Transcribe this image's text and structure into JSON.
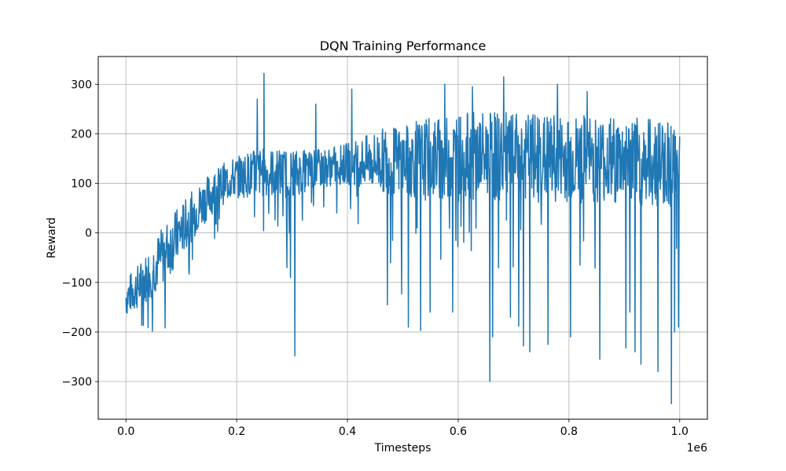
{
  "chart_data": {
    "type": "line",
    "title": "DQN Training Performance",
    "xlabel": "Timesteps",
    "ylabel": "Reward",
    "x_offset_label": "1e6",
    "xlim": [
      -0.05,
      1.05
    ],
    "ylim": [
      -376,
      356
    ],
    "xticks": [
      0.0,
      0.2,
      0.4,
      0.6,
      0.8,
      1.0
    ],
    "xtick_labels": [
      "0.0",
      "0.2",
      "0.4",
      "0.6",
      "0.8",
      "1.0"
    ],
    "yticks": [
      -300,
      -200,
      -100,
      0,
      100,
      200,
      300
    ],
    "ytick_labels": [
      "−300",
      "−200",
      "−100",
      "0",
      "100",
      "200",
      "300"
    ],
    "grid": true,
    "series": [
      {
        "color": "#1f77b4",
        "x": [
          0.0,
          0.01,
          0.02,
          0.03,
          0.04,
          0.05,
          0.06,
          0.07,
          0.08,
          0.09,
          0.1,
          0.11,
          0.12,
          0.13,
          0.14,
          0.15,
          0.16,
          0.17,
          0.18,
          0.19,
          0.2,
          0.21,
          0.22,
          0.23,
          0.24,
          0.25,
          0.26,
          0.27,
          0.28,
          0.29,
          0.3,
          0.31,
          0.32,
          0.33,
          0.34,
          0.35,
          0.36,
          0.37,
          0.38,
          0.39,
          0.4,
          0.41,
          0.42,
          0.43,
          0.44,
          0.45,
          0.46,
          0.47,
          0.48,
          0.49,
          0.5,
          0.51,
          0.52,
          0.53,
          0.54,
          0.55,
          0.56,
          0.57,
          0.58,
          0.59,
          0.6,
          0.61,
          0.62,
          0.63,
          0.64,
          0.65,
          0.66,
          0.67,
          0.68,
          0.69,
          0.7,
          0.71,
          0.72,
          0.73,
          0.74,
          0.75,
          0.76,
          0.77,
          0.78,
          0.79,
          0.8,
          0.81,
          0.82,
          0.83,
          0.84,
          0.85,
          0.86,
          0.87,
          0.88,
          0.89,
          0.9,
          0.91,
          0.92,
          0.93,
          0.94,
          0.95,
          0.96,
          0.97,
          0.98,
          0.99,
          1.0
        ],
        "ymean": [
          -130,
          -120,
          -110,
          -100,
          -85,
          -70,
          -55,
          -40,
          -25,
          -10,
          5,
          20,
          35,
          50,
          62,
          75,
          85,
          95,
          102,
          108,
          112,
          115,
          118,
          120,
          122,
          122,
          122,
          121,
          120,
          120,
          121,
          122,
          124,
          126,
          128,
          130,
          132,
          134,
          136,
          138,
          140,
          141,
          142,
          143,
          144,
          145,
          146,
          146,
          145,
          144,
          144,
          145,
          146,
          147,
          148,
          149,
          150,
          150,
          151,
          152,
          153,
          154,
          155,
          155,
          155,
          155,
          154,
          154,
          154,
          153,
          153,
          152,
          152,
          152,
          152,
          151,
          151,
          150,
          150,
          150,
          150,
          149,
          149,
          148,
          148,
          148,
          147,
          147,
          146,
          146,
          146,
          145,
          145,
          144,
          144,
          143,
          143,
          142,
          142,
          141,
          140
        ],
        "yspread": [
          40,
          42,
          45,
          48,
          52,
          55,
          58,
          60,
          60,
          58,
          55,
          52,
          50,
          48,
          46,
          44,
          42,
          42,
          42,
          42,
          42,
          44,
          46,
          48,
          50,
          50,
          50,
          50,
          50,
          50,
          48,
          46,
          44,
          42,
          40,
          40,
          40,
          40,
          40,
          40,
          42,
          45,
          48,
          52,
          56,
          60,
          64,
          68,
          70,
          72,
          74,
          76,
          78,
          80,
          82,
          84,
          85,
          86,
          87,
          88,
          90,
          90,
          90,
          90,
          90,
          90,
          90,
          90,
          90,
          90,
          90,
          90,
          90,
          90,
          90,
          90,
          90,
          90,
          90,
          90,
          90,
          90,
          90,
          90,
          90,
          90,
          90,
          90,
          90,
          90,
          90,
          90,
          90,
          90,
          90,
          90,
          90,
          90,
          90,
          90,
          90
        ],
        "spikes": [
          [
            0.237,
            270
          ],
          [
            0.249,
            322
          ],
          [
            0.291,
            -70
          ],
          [
            0.297,
            -90
          ],
          [
            0.305,
            -248
          ],
          [
            0.343,
            260
          ],
          [
            0.408,
            290
          ],
          [
            0.472,
            -145
          ],
          [
            0.478,
            -60
          ],
          [
            0.498,
            -123
          ],
          [
            0.51,
            -190
          ],
          [
            0.532,
            -197
          ],
          [
            0.549,
            -160
          ],
          [
            0.576,
            300
          ],
          [
            0.59,
            -160
          ],
          [
            0.626,
            295
          ],
          [
            0.657,
            -300
          ],
          [
            0.662,
            -210
          ],
          [
            0.682,
            315
          ],
          [
            0.694,
            -170
          ],
          [
            0.709,
            -188
          ],
          [
            0.718,
            -228
          ],
          [
            0.729,
            -240
          ],
          [
            0.762,
            -225
          ],
          [
            0.779,
            300
          ],
          [
            0.803,
            -210
          ],
          [
            0.833,
            285
          ],
          [
            0.856,
            -255
          ],
          [
            0.903,
            -232
          ],
          [
            0.91,
            -160
          ],
          [
            0.919,
            -240
          ],
          [
            0.93,
            -265
          ],
          [
            0.961,
            -280
          ],
          [
            0.985,
            -345
          ],
          [
            0.991,
            -200
          ],
          [
            0.998,
            -190
          ]
        ]
      }
    ]
  }
}
